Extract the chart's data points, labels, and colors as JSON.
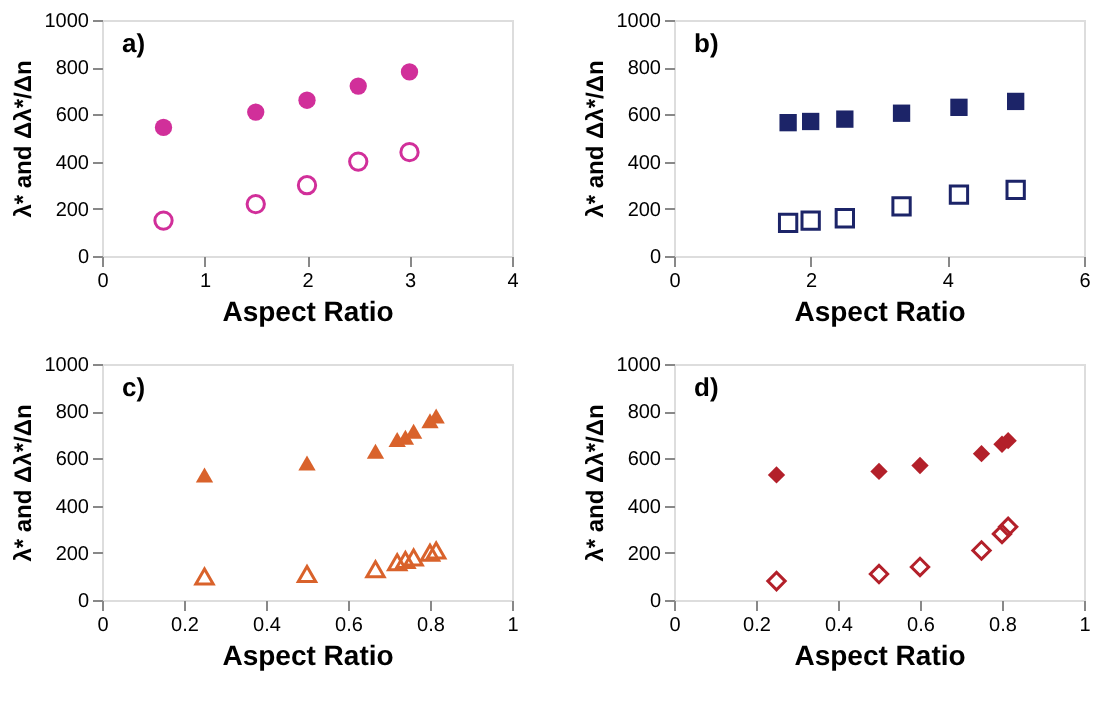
{
  "chart_data": [
    {
      "type": "scatter",
      "xlabel": "Aspect Ratio",
      "ylabel": "λ* and Δλ*/Δn",
      "annotations": [
        "a)"
      ],
      "marker": "circle",
      "grid": false,
      "xlim": [
        0,
        4
      ],
      "xticks": [
        0,
        1,
        2,
        3,
        4
      ],
      "ylim": [
        0,
        1000
      ],
      "yticks": [
        0,
        200,
        400,
        600,
        800,
        1000
      ],
      "x": [
        0.6,
        1.5,
        2,
        2.5,
        3
      ],
      "series": [
        {
          "color": "#d12f9a",
          "values": [
            545,
            610,
            660,
            720,
            780
          ]
        },
        {
          "color": "#d12f9a",
          "values": [
            150,
            220,
            300,
            400,
            440
          ]
        }
      ]
    },
    {
      "type": "scatter",
      "xlabel": "Aspect Ratio",
      "ylabel": "λ* and Δλ*/Δn",
      "annotations": [
        "b)"
      ],
      "marker": "square",
      "grid": false,
      "xlim": [
        0,
        6
      ],
      "xticks": [
        0,
        2,
        4,
        6
      ],
      "ylim": [
        0,
        1000
      ],
      "yticks": [
        0,
        200,
        400,
        600,
        800,
        1000
      ],
      "x": [
        1.67,
        2,
        2.5,
        3.33,
        4.17,
        5
      ],
      "series": [
        {
          "color": "#1c2468",
          "values": [
            565,
            570,
            580,
            605,
            630,
            655
          ]
        },
        {
          "color": "#1c2468",
          "values": [
            140,
            150,
            160,
            210,
            260,
            280
          ]
        }
      ]
    },
    {
      "type": "scatter",
      "xlabel": "Aspect Ratio",
      "ylabel": "λ* and Δλ*/Δn",
      "annotations": [
        "c)"
      ],
      "marker": "triangle",
      "grid": false,
      "xlim": [
        0,
        1
      ],
      "xticks": [
        0,
        0.2,
        0.4,
        0.6,
        0.8,
        1
      ],
      "ylim": [
        0,
        1000
      ],
      "yticks": [
        0,
        200,
        400,
        600,
        800,
        1000
      ],
      "x": [
        0.25,
        0.5,
        0.667,
        0.72,
        0.74,
        0.76,
        0.8,
        0.815
      ],
      "series": [
        {
          "color": "#d9622b",
          "values": [
            530,
            580,
            630,
            680,
            690,
            715,
            760,
            780
          ]
        },
        {
          "color": "#d9622b",
          "values": [
            100,
            110,
            130,
            160,
            170,
            180,
            200,
            210
          ]
        }
      ]
    },
    {
      "type": "scatter",
      "xlabel": "Aspect Ratio",
      "ylabel": "λ* and Δλ*/Δn",
      "annotations": [
        "d)"
      ],
      "marker": "diamond",
      "grid": false,
      "xlim": [
        0,
        1
      ],
      "xticks": [
        0,
        0.2,
        0.4,
        0.6,
        0.8,
        1
      ],
      "ylim": [
        0,
        1000
      ],
      "yticks": [
        0,
        200,
        400,
        600,
        800,
        1000
      ],
      "x": [
        0.25,
        0.5,
        0.6,
        0.75,
        0.8,
        0.815
      ],
      "series": [
        {
          "color": "#b3202a",
          "values": [
            530,
            545,
            570,
            620,
            660,
            675
          ]
        },
        {
          "color": "#b3202a",
          "values": [
            80,
            110,
            140,
            210,
            280,
            310
          ]
        }
      ]
    }
  ]
}
